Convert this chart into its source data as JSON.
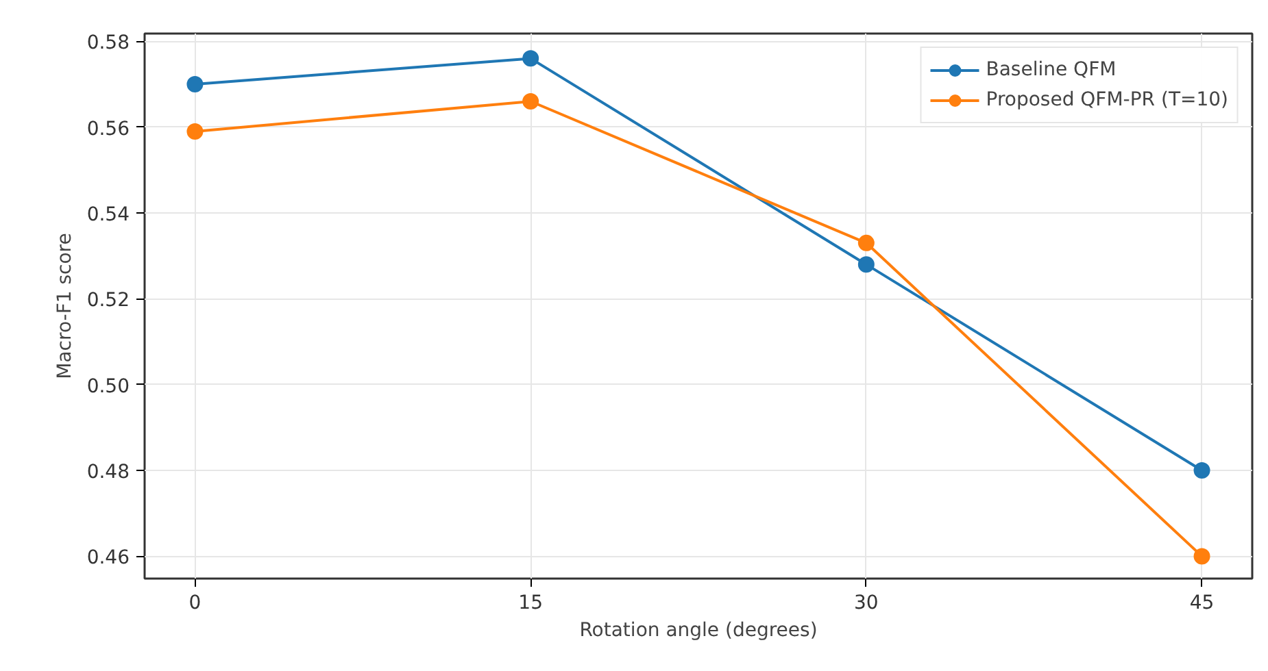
{
  "chart_data": {
    "type": "line",
    "xlabel": "Rotation angle (degrees)",
    "ylabel": "Macro-F1 score",
    "x": [
      0,
      15,
      30,
      45
    ],
    "series": [
      {
        "name": "Baseline QFM",
        "color": "#1f77b4",
        "values": [
          0.57,
          0.576,
          0.528,
          0.48
        ]
      },
      {
        "name": "Proposed QFM-PR (T=10)",
        "color": "#ff7f0e",
        "values": [
          0.559,
          0.566,
          0.533,
          0.46
        ]
      }
    ],
    "xlim": [
      -2.25,
      47.25
    ],
    "ylim": [
      0.4548,
      0.5818
    ],
    "xticks": [
      0,
      15,
      30,
      45
    ],
    "yticks": [
      {
        "value": 0.46,
        "label": "0.46"
      },
      {
        "value": 0.48,
        "label": "0.48"
      },
      {
        "value": 0.5,
        "label": "0.50"
      },
      {
        "value": 0.52,
        "label": "0.52"
      },
      {
        "value": 0.54,
        "label": "0.54"
      },
      {
        "value": 0.56,
        "label": "0.56"
      },
      {
        "value": 0.58,
        "label": "0.58"
      }
    ],
    "grid": true,
    "legend": "top right",
    "marker": "circle",
    "line_style": "solid"
  }
}
